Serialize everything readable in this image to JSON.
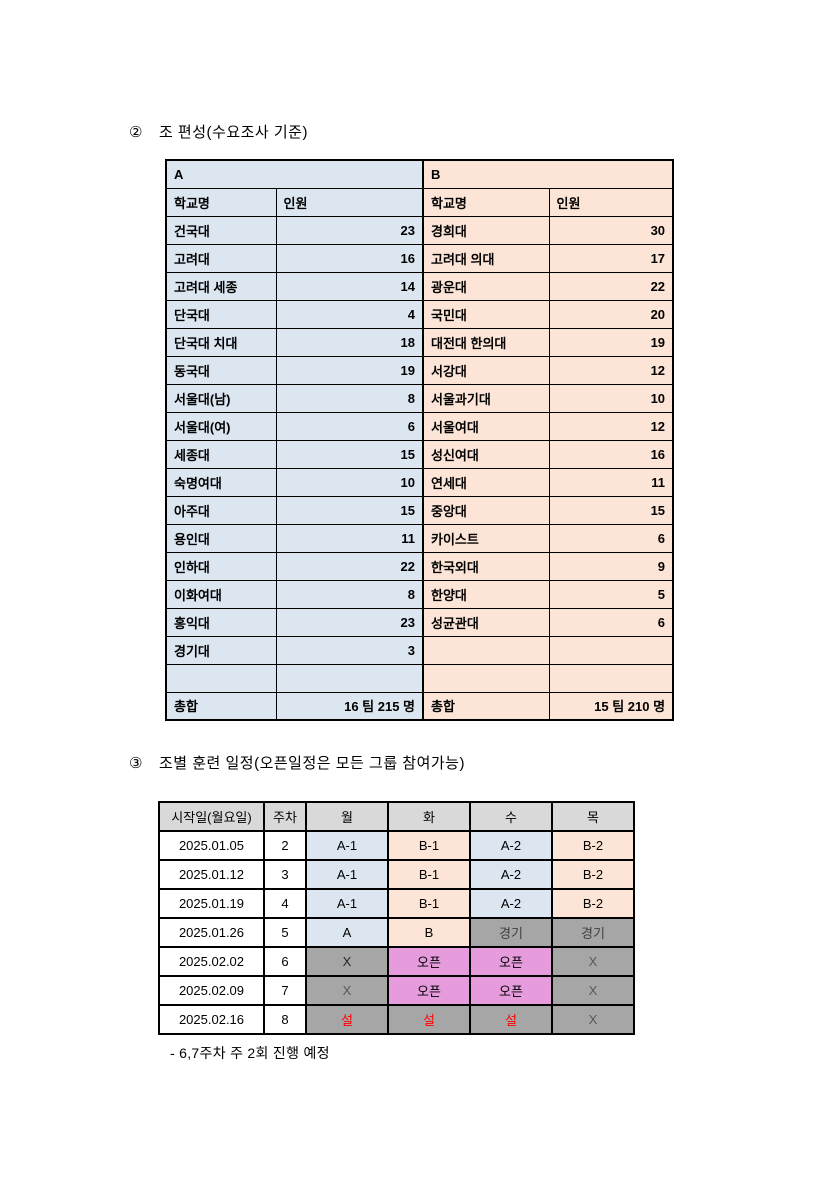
{
  "colors": {
    "blue_fill": "#dce6f1",
    "orange_fill": "#fce4d6",
    "header_gray": "#d9d9d9",
    "cell_gray": "#a6a6a6",
    "pink_fill": "#e59bdc",
    "text_dark": "#404040",
    "text_light": "#595959",
    "text_near_black": "#262626",
    "text_red": "#ff0000"
  },
  "roster": {
    "marker": "②",
    "title": "조 편성(수요조사 기준)",
    "group_a_label": "A",
    "group_b_label": "B",
    "columns": [
      "학교명",
      "인원"
    ],
    "rows_a": [
      {
        "school": "건국대",
        "count": "23"
      },
      {
        "school": "고려대",
        "count": "16"
      },
      {
        "school": "고려대 세종",
        "count": "14"
      },
      {
        "school": "단국대",
        "count": "4"
      },
      {
        "school": "단국대 치대",
        "count": "18"
      },
      {
        "school": "동국대",
        "count": "19"
      },
      {
        "school": "서울대(남)",
        "count": "8"
      },
      {
        "school": "서울대(여)",
        "count": "6"
      },
      {
        "school": "세종대",
        "count": "15"
      },
      {
        "school": "숙명여대",
        "count": "10"
      },
      {
        "school": "아주대",
        "count": "15"
      },
      {
        "school": "용인대",
        "count": "11"
      },
      {
        "school": "인하대",
        "count": "22"
      },
      {
        "school": "이화여대",
        "count": "8"
      },
      {
        "school": "홍익대",
        "count": "23"
      },
      {
        "school": "경기대",
        "count": "3"
      },
      {
        "school": "",
        "count": ""
      }
    ],
    "rows_b": [
      {
        "school": "경희대",
        "count": "30"
      },
      {
        "school": "고려대 의대",
        "count": "17"
      },
      {
        "school": "광운대",
        "count": "22"
      },
      {
        "school": "국민대",
        "count": "20"
      },
      {
        "school": "대전대 한의대",
        "count": "19"
      },
      {
        "school": "서강대",
        "count": "12"
      },
      {
        "school": "서울과기대",
        "count": "10"
      },
      {
        "school": "서울여대",
        "count": "12"
      },
      {
        "school": "성신여대",
        "count": "16"
      },
      {
        "school": "연세대",
        "count": "11"
      },
      {
        "school": "중앙대",
        "count": "15"
      },
      {
        "school": "카이스트",
        "count": "6"
      },
      {
        "school": "한국외대",
        "count": "9"
      },
      {
        "school": "한양대",
        "count": "5"
      },
      {
        "school": "성균관대",
        "count": "6"
      },
      {
        "school": "",
        "count": ""
      },
      {
        "school": "",
        "count": ""
      }
    ],
    "total_label": "총합",
    "total_a": "16 팀 215 명",
    "total_b": "15 팀 210 명"
  },
  "schedule": {
    "marker": "③",
    "title": "조별 훈련 일정(오픈일정은 모든 그룹 참여가능)",
    "headers": [
      "시작일(월요일)",
      "주차",
      "월",
      "화",
      "수",
      "목"
    ],
    "rows": [
      {
        "date": "2025.01.05",
        "week": "2",
        "cells": [
          {
            "text": "A-1",
            "bg": "blue",
            "bold": true
          },
          {
            "text": "B-1",
            "bg": "orange",
            "bold": true
          },
          {
            "text": "A-2",
            "bg": "blue",
            "bold": true
          },
          {
            "text": "B-2",
            "bg": "orange",
            "bold": true
          }
        ]
      },
      {
        "date": "2025.01.12",
        "week": "3",
        "cells": [
          {
            "text": "A-1",
            "bg": "blue",
            "bold": true
          },
          {
            "text": "B-1",
            "bg": "orange",
            "bold": true
          },
          {
            "text": "A-2",
            "bg": "blue",
            "bold": true
          },
          {
            "text": "B-2",
            "bg": "orange",
            "bold": true
          }
        ]
      },
      {
        "date": "2025.01.19",
        "week": "4",
        "cells": [
          {
            "text": "A-1",
            "bg": "blue",
            "bold": true
          },
          {
            "text": "B-1",
            "bg": "orange",
            "bold": true
          },
          {
            "text": "A-2",
            "bg": "blue",
            "bold": true
          },
          {
            "text": "B-2",
            "bg": "orange",
            "bold": true
          }
        ]
      },
      {
        "date": "2025.01.26",
        "week": "5",
        "cells": [
          {
            "text": "A",
            "bg": "blue",
            "bold": true
          },
          {
            "text": "B",
            "bg": "orange",
            "bold": true
          },
          {
            "text": "경기",
            "bg": "gray",
            "color": "dark"
          },
          {
            "text": "경기",
            "bg": "gray",
            "color": "dark"
          }
        ]
      },
      {
        "date": "2025.02.02",
        "week": "6",
        "cells": [
          {
            "text": "X",
            "bg": "gray",
            "color": "near_black"
          },
          {
            "text": "오픈",
            "bg": "pink",
            "bold": true
          },
          {
            "text": "오픈",
            "bg": "pink",
            "bold": true
          },
          {
            "text": "X",
            "bg": "gray",
            "color": "light"
          }
        ]
      },
      {
        "date": "2025.02.09",
        "week": "7",
        "cells": [
          {
            "text": "X",
            "bg": "gray",
            "color": "light"
          },
          {
            "text": "오픈",
            "bg": "pink",
            "bold": true
          },
          {
            "text": "오픈",
            "bg": "pink",
            "bold": true
          },
          {
            "text": "X",
            "bg": "gray",
            "color": "light"
          }
        ]
      },
      {
        "date": "2025.02.16",
        "week": "8",
        "cells": [
          {
            "text": "설",
            "bg": "gray",
            "color": "red",
            "bold": true
          },
          {
            "text": "설",
            "bg": "gray",
            "color": "red",
            "bold": true
          },
          {
            "text": "설",
            "bg": "gray",
            "color": "red",
            "bold": true
          },
          {
            "text": "X",
            "bg": "gray",
            "color": "light"
          }
        ]
      }
    ],
    "note": "- 6,7주차 주 2회 진행 예정"
  }
}
